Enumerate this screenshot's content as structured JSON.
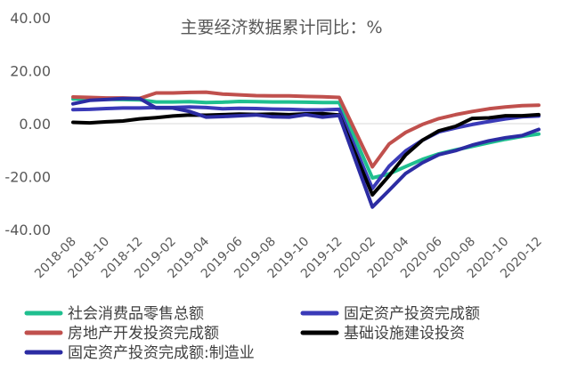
{
  "chart_data": {
    "type": "line",
    "title": "主要经济数据累计同比：%",
    "xlabel": "",
    "ylabel": "",
    "ylim": [
      -40,
      40
    ],
    "yticks": [
      "-40.00",
      "-20.00",
      "0.00",
      "20.00",
      "40.00"
    ],
    "grid": false,
    "legend_position": "bottom",
    "x": [
      "2018-08",
      "2018-09",
      "2018-10",
      "2018-11",
      "2018-12",
      "2019-01",
      "2019-02",
      "2019-03",
      "2019-04",
      "2019-05",
      "2019-06",
      "2019-07",
      "2019-08",
      "2019-09",
      "2019-10",
      "2019-11",
      "2019-12",
      "2020-01",
      "2020-02",
      "2020-03",
      "2020-04",
      "2020-05",
      "2020-06",
      "2020-07",
      "2020-08",
      "2020-09",
      "2020-10",
      "2020-11",
      "2020-12"
    ],
    "xtick_labels": [
      "2018-08",
      "2018-10",
      "2018-12",
      "2019-02",
      "2019-04",
      "2019-06",
      "2019-08",
      "2019-10",
      "2019-12",
      "2020-02",
      "2020-04",
      "2020-06",
      "2020-08",
      "2020-10",
      "2020-12"
    ],
    "series": [
      {
        "name": "社会消费品零售总额",
        "color": "#1fbf8f",
        "values": [
          9.3,
          9.3,
          9.2,
          9.1,
          9.0,
          8.2,
          8.2,
          8.3,
          8.0,
          8.1,
          8.4,
          8.3,
          8.2,
          8.2,
          8.1,
          8.0,
          8.0,
          null,
          -20.5,
          -19.0,
          -16.2,
          -13.5,
          -11.4,
          -9.9,
          -8.6,
          -7.2,
          -5.9,
          -4.8,
          -3.9
        ]
      },
      {
        "name": "固定资产投资完成额",
        "color": "#3a3ab8",
        "values": [
          5.3,
          5.4,
          5.7,
          5.9,
          5.9,
          6.1,
          6.1,
          6.3,
          6.1,
          5.6,
          5.8,
          5.7,
          5.5,
          5.4,
          5.2,
          5.2,
          5.4,
          null,
          -24.5,
          -16.1,
          -10.3,
          -6.3,
          -3.1,
          -1.6,
          -0.3,
          0.8,
          1.8,
          2.6,
          2.9
        ]
      },
      {
        "name": "房地产开发投资完成额",
        "color": "#c0504d",
        "values": [
          10.1,
          9.9,
          9.7,
          9.7,
          9.5,
          11.6,
          11.6,
          11.8,
          11.9,
          11.2,
          10.9,
          10.6,
          10.5,
          10.5,
          10.3,
          10.2,
          9.9,
          null,
          -16.3,
          -7.7,
          -3.3,
          -0.3,
          1.9,
          3.4,
          4.6,
          5.6,
          6.3,
          6.8,
          7.0
        ]
      },
      {
        "name": "基础设施建设投资",
        "color": "#000000",
        "values": [
          0.5,
          0.3,
          0.7,
          1.0,
          1.8,
          2.3,
          2.9,
          3.3,
          3.2,
          3.4,
          3.6,
          3.5,
          3.6,
          3.4,
          3.7,
          3.8,
          3.3,
          null,
          -26.9,
          -19.7,
          -11.8,
          -6.3,
          -2.7,
          -1.0,
          2.0,
          2.2,
          3.0,
          3.0,
          3.4
        ]
      },
      {
        "name": "固定资产投资完成额:制造业",
        "color": "#2c2ca3",
        "values": [
          7.5,
          8.8,
          9.1,
          9.5,
          9.5,
          5.9,
          5.9,
          4.6,
          2.5,
          2.7,
          3.0,
          3.3,
          2.6,
          2.5,
          3.4,
          2.5,
          3.1,
          null,
          -31.5,
          -25.2,
          -18.8,
          -14.8,
          -11.7,
          -10.2,
          -8.1,
          -6.5,
          -5.3,
          -4.5,
          -2.2
        ]
      }
    ]
  }
}
